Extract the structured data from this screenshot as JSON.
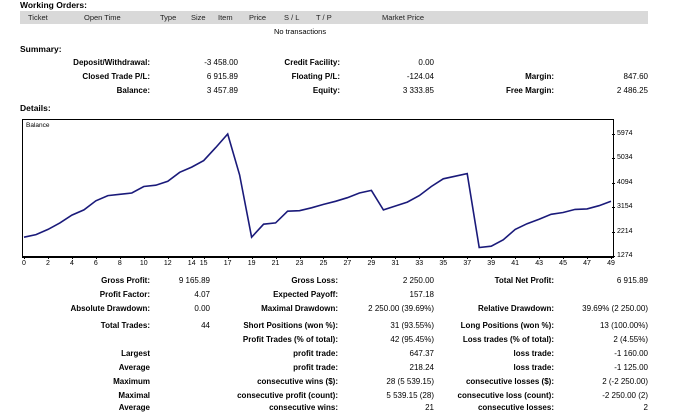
{
  "working_orders": {
    "title": "Working Orders:",
    "columns": [
      "Ticket",
      "Open Time",
      "Type",
      "Size",
      "Item",
      "Price",
      "S / L",
      "T / P",
      "Market Price"
    ],
    "empty_text": "No transactions"
  },
  "summary": {
    "title": "Summary:",
    "rows": [
      [
        {
          "label": "Deposit/Withdrawal:",
          "value": "-3 458.00"
        },
        {
          "label": "Credit Facility:",
          "value": "0.00"
        },
        {
          "label": "",
          "value": ""
        }
      ],
      [
        {
          "label": "Closed Trade P/L:",
          "value": "6 915.89"
        },
        {
          "label": "Floating P/L:",
          "value": "-124.04"
        },
        {
          "label": "Margin:",
          "value": "847.60"
        }
      ],
      [
        {
          "label": "Balance:",
          "value": "3 457.89"
        },
        {
          "label": "Equity:",
          "value": "3 333.85"
        },
        {
          "label": "Free Margin:",
          "value": "2 486.25"
        }
      ]
    ]
  },
  "details": {
    "title": "Details:"
  },
  "chart_data": {
    "type": "line",
    "legend_label": "Balance",
    "x_ticks": [
      0,
      2,
      4,
      6,
      8,
      10,
      12,
      14,
      15,
      17,
      19,
      21,
      23,
      25,
      27,
      29,
      31,
      33,
      35,
      37,
      39,
      41,
      43,
      45,
      47,
      49
    ],
    "y_ticks": [
      1274,
      2214,
      3154,
      4094,
      5034,
      5974
    ],
    "ylim": [
      1274,
      5974
    ],
    "series": [
      {
        "x": [
          0,
          1,
          2,
          3,
          4,
          5,
          6,
          7,
          8,
          9,
          10,
          11,
          12,
          13,
          14,
          15,
          16,
          17,
          18,
          19,
          20,
          21,
          22,
          23,
          24,
          25,
          26,
          27,
          28,
          29,
          30,
          31,
          32,
          33,
          34,
          35,
          36,
          37,
          38,
          39,
          40,
          41,
          42,
          43,
          44,
          45,
          46,
          47,
          48,
          49
        ],
        "values": [
          2000,
          2100,
          2300,
          2550,
          2850,
          3050,
          3400,
          3600,
          3650,
          3700,
          3950,
          4000,
          4150,
          4500,
          4700,
          4950,
          5450,
          5974,
          4400,
          2000,
          2500,
          2550,
          3000,
          3020,
          3130,
          3260,
          3380,
          3520,
          3700,
          3800,
          3050,
          3200,
          3350,
          3600,
          3950,
          4250,
          4350,
          4450,
          1600,
          1650,
          1900,
          2300,
          2520,
          2690,
          2880,
          2950,
          3070,
          3090,
          3210,
          3380
        ]
      }
    ]
  },
  "stats": {
    "gross_profit_label": "Gross Profit:",
    "gross_profit": "9 165.89",
    "gross_loss_label": "Gross Loss:",
    "gross_loss": "2 250.00",
    "total_net_profit_label": "Total Net Profit:",
    "total_net_profit": "6 915.89",
    "profit_factor_label": "Profit Factor:",
    "profit_factor": "4.07",
    "expected_payoff_label": "Expected Payoff:",
    "expected_payoff": "157.18",
    "absolute_drawdown_label": "Absolute Drawdown:",
    "absolute_drawdown": "0.00",
    "maximal_drawdown_label": "Maximal Drawdown:",
    "maximal_drawdown": "2 250.00 (39.69%)",
    "relative_drawdown_label": "Relative Drawdown:",
    "relative_drawdown": "39.69% (2 250.00)",
    "total_trades_label": "Total Trades:",
    "total_trades": "44",
    "short_positions_label": "Short Positions (won %):",
    "short_positions": "31 (93.55%)",
    "long_positions_label": "Long Positions (won %):",
    "long_positions": "13 (100.00%)",
    "profit_trades_label": "Profit Trades (% of total):",
    "profit_trades": "42 (95.45%)",
    "loss_trades_label": "Loss trades (% of total):",
    "loss_trades": "2 (4.55%)",
    "largest_label": "Largest",
    "largest_profit_label": "profit trade:",
    "largest_profit": "647.37",
    "largest_loss_label": "loss trade:",
    "largest_loss": "-1 160.00",
    "average_label": "Average",
    "average_profit_label": "profit trade:",
    "average_profit": "218.24",
    "average_loss_label": "loss trade:",
    "average_loss": "-1 125.00",
    "maximum_label": "Maximum",
    "max_consec_wins_label": "consecutive wins ($):",
    "max_consec_wins": "28 (5 539.15)",
    "max_consec_losses_label": "consecutive losses ($):",
    "max_consec_losses": "2 (-2 250.00)",
    "maximal_label": "Maximal",
    "maximal_consec_profit_label": "consecutive profit (count):",
    "maximal_consec_profit": "5 539.15 (28)",
    "maximal_consec_loss_label": "consecutive loss (count):",
    "maximal_consec_loss": "-2 250.00 (2)",
    "average2_label": "Average",
    "avg_consec_wins_label": "consecutive wins:",
    "avg_consec_wins": "21",
    "avg_consec_losses_label": "consecutive losses:",
    "avg_consec_losses": "2"
  }
}
